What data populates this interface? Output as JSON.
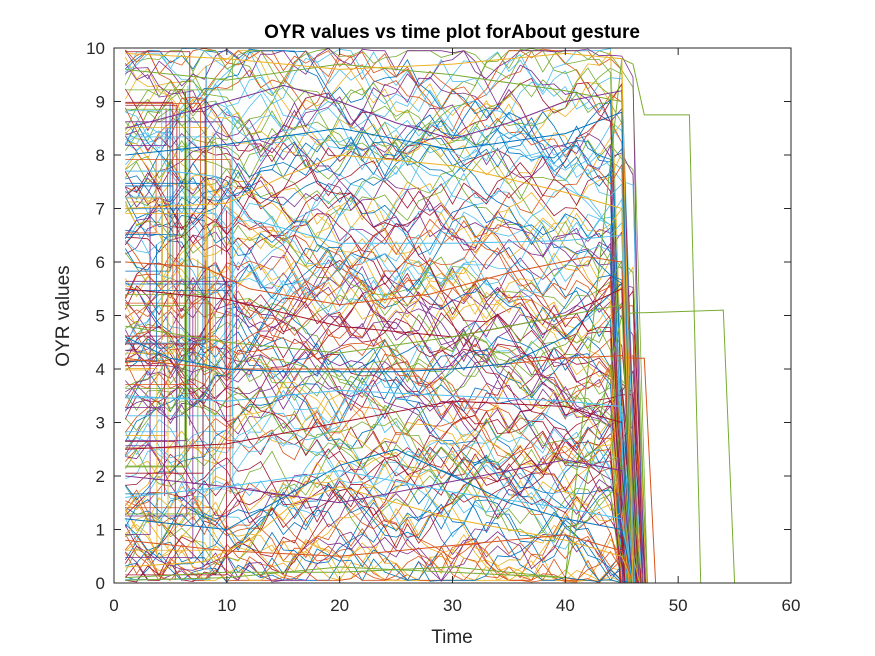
{
  "chart_data": {
    "type": "line",
    "title": "OYR values vs time plot forAbout gesture",
    "xlabel": "Time",
    "ylabel": "OYR values",
    "xlim": [
      0,
      60
    ],
    "ylim": [
      0,
      10
    ],
    "x_ticks": [
      "0",
      "10",
      "20",
      "30",
      "40",
      "50",
      "60"
    ],
    "y_ticks": [
      "0",
      "1",
      "2",
      "3",
      "4",
      "5",
      "6",
      "7",
      "8",
      "9",
      "10"
    ],
    "grid": false,
    "legend": "none",
    "palette": [
      "#0072BD",
      "#D95319",
      "#EDB120",
      "#7E2F8E",
      "#77AC30",
      "#4DBEEE",
      "#A2142F"
    ],
    "notes_series_count": "many overlapping series (several hundred); representative sample drawn",
    "series": [
      {
        "color": "#77AC30",
        "x": [
          1,
          10,
          20,
          30,
          40,
          45,
          46,
          47,
          51,
          52,
          55
        ],
        "y": [
          0.05,
          0.1,
          0.3,
          0.2,
          0.1,
          9.8,
          9.7,
          8.75,
          8.75,
          0.0,
          0.0
        ]
      },
      {
        "color": "#77AC30",
        "x": [
          1,
          10,
          20,
          30,
          40,
          45,
          46,
          47,
          54,
          55
        ],
        "y": [
          0.1,
          0.2,
          0.2,
          0.3,
          0.1,
          5.0,
          5.05,
          5.05,
          5.1,
          0.0
        ]
      },
      {
        "color": "#D95319",
        "x": [
          1,
          5,
          10,
          20,
          30,
          40,
          45,
          46,
          47,
          48
        ],
        "y": [
          4.2,
          4.1,
          4.0,
          4.0,
          4.0,
          4.2,
          4.25,
          4.2,
          4.2,
          0.0
        ]
      },
      {
        "color": "#0072BD",
        "x": [
          1,
          5,
          10,
          15,
          20,
          25,
          30,
          35,
          40,
          45,
          46
        ],
        "y": [
          4.6,
          4.2,
          4.0,
          3.95,
          3.95,
          3.95,
          4.0,
          4.1,
          4.6,
          5.6,
          0.0
        ]
      },
      {
        "color": "#4DBEEE",
        "x": [
          1,
          5,
          9,
          12,
          20,
          30,
          40,
          45,
          46
        ],
        "y": [
          7.7,
          7.7,
          7.6,
          6.8,
          6.35,
          6.35,
          6.4,
          6.5,
          0.0
        ]
      },
      {
        "color": "#EDB120",
        "x": [
          1,
          8,
          12,
          16,
          20,
          25,
          30,
          35,
          40,
          45,
          46
        ],
        "y": [
          0.3,
          0.4,
          0.8,
          1.5,
          1.8,
          1.5,
          1.2,
          1.0,
          0.8,
          0.5,
          0.0
        ]
      },
      {
        "color": "#7E2F8E",
        "x": [
          1,
          10,
          15,
          20,
          25,
          30,
          35,
          40,
          45,
          46
        ],
        "y": [
          8.5,
          9.0,
          9.3,
          9.0,
          8.6,
          8.3,
          8.6,
          9.0,
          9.2,
          0.0
        ]
      },
      {
        "color": "#A2142F",
        "x": [
          1,
          10,
          20,
          30,
          40,
          45,
          46
        ],
        "y": [
          2.5,
          2.6,
          3.0,
          3.4,
          3.3,
          3.0,
          0.0
        ]
      },
      {
        "color": "#0072BD",
        "x": [
          1,
          10,
          15,
          20,
          25,
          30,
          35,
          40,
          45,
          46
        ],
        "y": [
          1.2,
          1.0,
          1.6,
          2.2,
          2.5,
          2.0,
          1.5,
          1.2,
          1.0,
          0.0
        ]
      },
      {
        "color": "#D95319",
        "x": [
          1,
          8,
          12,
          20,
          28,
          35,
          42,
          45,
          46
        ],
        "y": [
          6.0,
          5.9,
          5.5,
          5.2,
          5.4,
          5.8,
          6.1,
          6.0,
          0.0
        ]
      },
      {
        "color": "#77AC30",
        "x": [
          1,
          10,
          20,
          30,
          40,
          45,
          46
        ],
        "y": [
          9.6,
          9.4,
          9.7,
          9.5,
          9.2,
          9.0,
          0.0
        ]
      },
      {
        "color": "#4DBEEE",
        "x": [
          1,
          10,
          20,
          30,
          40,
          45,
          46
        ],
        "y": [
          3.5,
          3.4,
          3.6,
          3.5,
          3.4,
          3.3,
          0.0
        ]
      },
      {
        "color": "#EDB120",
        "x": [
          1,
          10,
          15,
          20,
          30,
          40,
          45,
          46
        ],
        "y": [
          7.0,
          7.1,
          7.6,
          8.0,
          7.8,
          7.3,
          7.0,
          0.0
        ]
      },
      {
        "color": "#7E2F8E",
        "x": [
          1,
          10,
          20,
          30,
          40,
          45,
          46
        ],
        "y": [
          2.0,
          1.8,
          1.5,
          1.9,
          2.3,
          2.1,
          0.0
        ]
      },
      {
        "color": "#A2142F",
        "x": [
          1,
          10,
          20,
          30,
          40,
          45,
          46
        ],
        "y": [
          5.5,
          5.3,
          4.8,
          4.6,
          5.0,
          5.5,
          0.0
        ]
      },
      {
        "color": "#0072BD",
        "x": [
          1,
          10,
          20,
          30,
          40,
          45,
          46
        ],
        "y": [
          8.0,
          8.2,
          8.5,
          8.1,
          8.4,
          8.8,
          0.0
        ]
      },
      {
        "color": "#D95319",
        "x": [
          1,
          10,
          20,
          30,
          40,
          45,
          46
        ],
        "y": [
          0.8,
          0.6,
          0.5,
          0.7,
          0.9,
          0.6,
          0.0
        ]
      },
      {
        "color": "#77AC30",
        "x": [
          1,
          10,
          20,
          30,
          40,
          45,
          46
        ],
        "y": [
          4.8,
          4.5,
          4.3,
          4.6,
          5.0,
          5.2,
          0.0
        ]
      },
      {
        "color": "#4DBEEE",
        "x": [
          1,
          10,
          20,
          30,
          40,
          45,
          46
        ],
        "y": [
          1.6,
          1.8,
          2.1,
          1.7,
          1.4,
          1.2,
          0.0
        ]
      },
      {
        "color": "#EDB120",
        "x": [
          1,
          10,
          20,
          30,
          40,
          45,
          46
        ],
        "y": [
          9.9,
          9.8,
          9.6,
          9.7,
          9.9,
          9.8,
          0.0
        ]
      }
    ]
  }
}
